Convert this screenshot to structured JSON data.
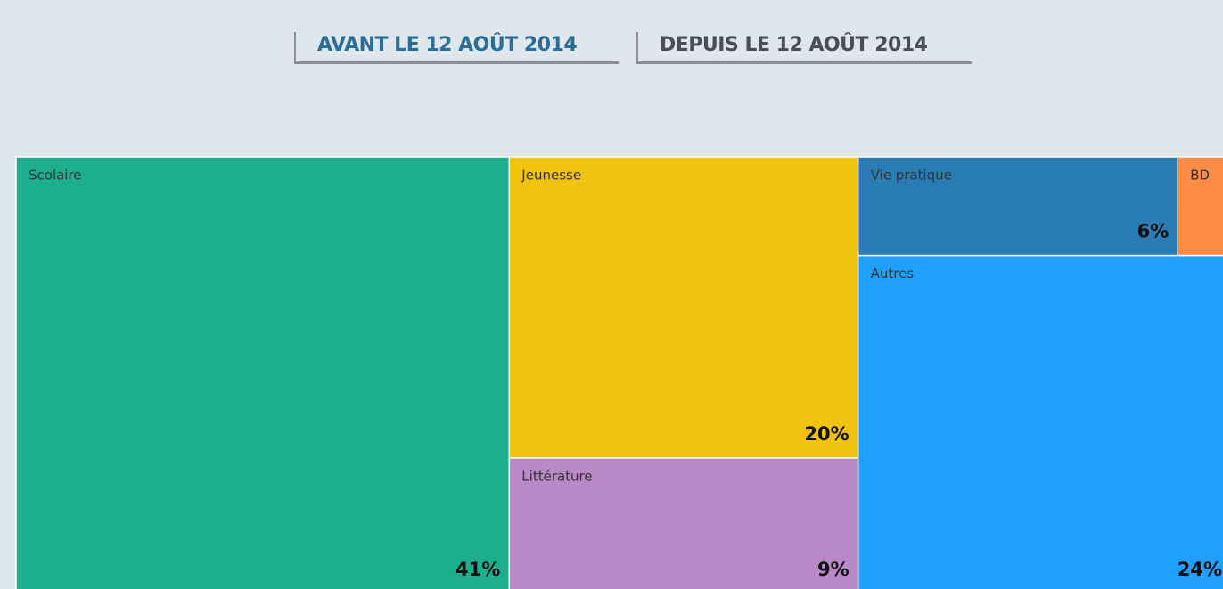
{
  "buttons": [
    "AVANT LE 12 AOÛT 2014",
    "DEPUIS LE 12 AOÛT 2014"
  ],
  "chart_data": {
    "type": "treemap",
    "categories": [
      "Scolaire",
      "Jeunesse",
      "Littérature",
      "Vie pratique",
      "BD",
      "Autres"
    ],
    "values": [
      41,
      20,
      9,
      6,
      1,
      24
    ],
    "value_labels": [
      "41%",
      "20%",
      "9%",
      "6%",
      null,
      "24%"
    ],
    "colors": [
      "#1cae8f",
      "#f0c30f",
      "#b988c6",
      "#2a7db4",
      "#fe8c45",
      "#20a0fd"
    ]
  }
}
